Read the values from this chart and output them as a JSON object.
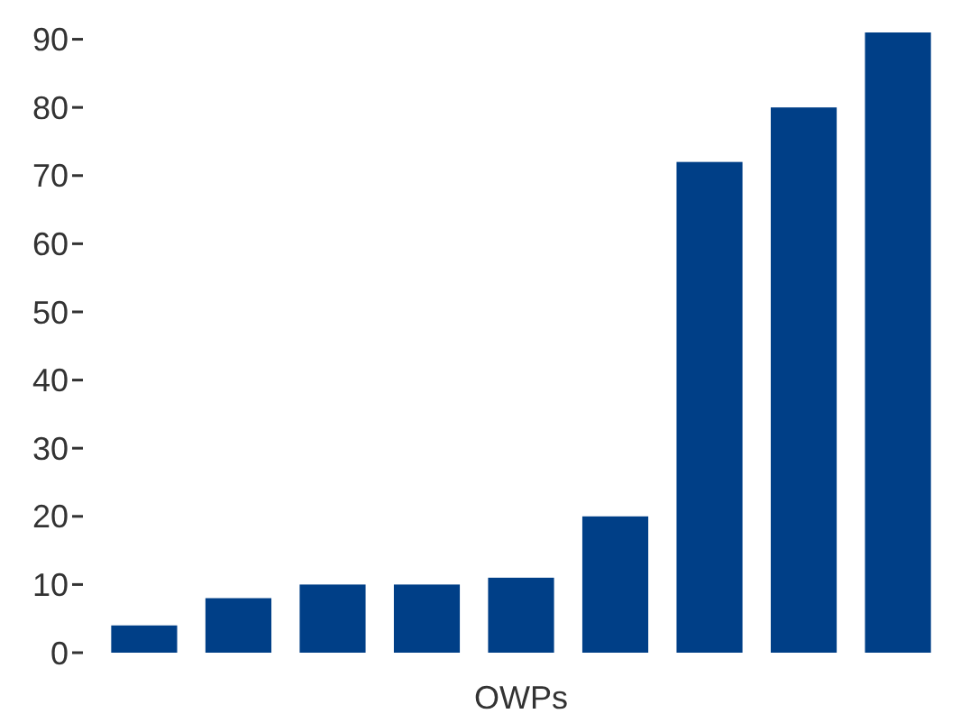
{
  "chart_data": {
    "type": "bar",
    "xlabel": "OWPs",
    "categories": [
      null,
      null,
      null,
      null,
      null,
      null,
      null,
      null,
      null
    ],
    "values": [
      4,
      8,
      10,
      10,
      11,
      20,
      72,
      80,
      91
    ],
    "color": "#003f87",
    "ylim": [
      0,
      91
    ],
    "yticks": [
      0,
      10,
      20,
      30,
      40,
      50,
      60,
      70,
      80,
      90
    ],
    "grid": false
  }
}
